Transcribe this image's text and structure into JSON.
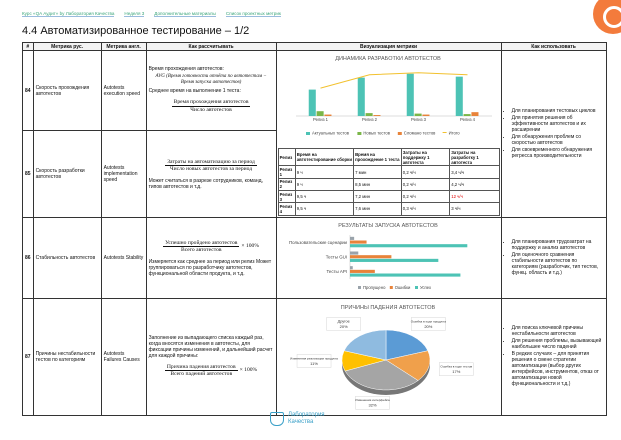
{
  "breadcrumb": [
    "Курс «QA Аудит» by Лаборатория Качества",
    "Неделя 3",
    "Дополнительные материалы",
    "Список проектных метрик"
  ],
  "title": "4.4 Автоматизированное тестирование – 1/2",
  "table": {
    "headers": [
      "#",
      "Метрика рус.",
      "Метрика англ.",
      "Как рассчитывать",
      "Визуализация метрики",
      "Как использовать"
    ],
    "rows": [
      {
        "num": 84,
        "name_ru": "Скорость прохождения автотестов",
        "name_en": "Autotests execution speed",
        "calc": [
          {
            "text": "Время прохождения автотестов:"
          },
          {
            "formula": "AVG (Время готовности отчёта по автотестам − Время запуска автотестов)"
          },
          {
            "text": "Среднее время на выполнение 1 теста:"
          },
          {
            "num": "Время прохождения автотестов",
            "den": "Число автотестов"
          }
        ],
        "use": [
          "Для планирования тестовых циклов",
          "Для принятия решения об эффективности автотестов и их расширении",
          "Для обнаружения проблем со скоростью автотестов",
          "Для своевременного обнаружения регресса производительности"
        ]
      },
      {
        "num": 85,
        "name_ru": "Скорость разработки автотестов",
        "name_en": "Autotests implementation speed",
        "calc": [
          {
            "num": "Затраты на автоматизацию за период",
            "den": "Число новых автотестов за период"
          },
          {
            "text": "Может считаться в разрезе сотрудников, команд, типов автотестов и т.д."
          }
        ]
      },
      {
        "num": 86,
        "name_ru": "Стабильность автотестов",
        "name_en": "Autotests Stability",
        "calc": [
          {
            "num": "Успешно пройдено автотестов",
            "den": "Всего автотестов",
            "suffix": "× 100%"
          },
          {
            "text": "Измеряется как среднее за период или релиз Может группироваться по разработчику автотестов, функциональной области продукта, и т.д."
          }
        ],
        "use": [
          "Для планирования трудозатрат на поддержку и анализ автотестов",
          "Для оценочного сравнения стабильности автотестов по категориям (разработчик, тип тестов, функц. область и т.д.)"
        ]
      },
      {
        "num": 87,
        "name_ru": "Причины нестабильности тестов по категориям",
        "name_en": "Autotests Failures Causes",
        "calc": [
          {
            "text": "Заполнение из выпадающего списка каждый раз, когда вносятся изменения в автотесты, для фиксации причины изменений, и дальнейший расчет для каждой причины:"
          },
          {
            "num": "Причина падения автотестов",
            "den": "Всего падений автотестов",
            "suffix": "× 100%"
          }
        ],
        "use": [
          "Для поиска ключевой причины нестабильности автотестов",
          "Для решения проблемы, вызывающей наибольшее число падений",
          "В редких случаях – для принятия решения о смене стратегии автоматизации (выбор других интерфейсов, инструментов, отказ от автоматизации новой функциональности и т.д.)"
        ]
      }
    ]
  },
  "charts": {
    "dynamics": {
      "type": "bar",
      "title": "ДИНАМИКА РАЗРАБОТКИ АВТОТЕСТОВ",
      "categories": [
        "Релиз 1",
        "Релиз 2",
        "Релиз 3",
        "Релиз 4"
      ],
      "ylim": [
        0,
        100
      ],
      "series": [
        {
          "name": "Актуальных тестов",
          "color": "#4dc3b5",
          "values": [
            55,
            80,
            88,
            82
          ]
        },
        {
          "name": "Новых тестов",
          "color": "#7ab648",
          "values": [
            10,
            6,
            5,
            4
          ]
        },
        {
          "name": "Сломано тестов",
          "color": "#e8833a",
          "values": [
            3,
            2,
            3,
            8
          ]
        },
        {
          "name": "Итого",
          "color": "#f2c12e",
          "type": "line",
          "values": [
            58,
            86,
            90,
            86
          ]
        }
      ]
    },
    "results": {
      "type": "hbar",
      "title": "РЕЗУЛЬТАТЫ ЗАПУСКА АВТОТЕСТОВ",
      "categories": [
        "Пользовательские сценарии",
        "Тесты GUI",
        "Тесты API"
      ],
      "xlim": [
        0,
        100
      ],
      "series": [
        {
          "name": "Пропущено",
          "color": "#9aa3ab",
          "values": [
            3,
            6,
            2
          ]
        },
        {
          "name": "Ошибки",
          "color": "#e8833a",
          "values": [
            12,
            30,
            18
          ]
        },
        {
          "name": "Успех",
          "color": "#4dc3b5",
          "values": [
            85,
            64,
            80
          ]
        }
      ]
    },
    "causes": {
      "type": "pie",
      "title": "ПРИЧИНЫ ПАДЕНИЯ АВТОТЕСТОВ",
      "categories": [
        "Ошибка в коде продукта",
        "Ошибка в коде тестов",
        "Изменения интерфейса",
        "Изменения реализации продукта",
        "Другое"
      ],
      "values": [
        20,
        17,
        32,
        11,
        20
      ],
      "value_labels": [
        "20%",
        "17%",
        "32%",
        "11%",
        "20%"
      ],
      "colors": [
        "#5b9bd5",
        "#f0a04b",
        "#a5a5a5",
        "#ffc000",
        "#8fbbe0"
      ]
    }
  },
  "release_table": {
    "headers": [
      "Релиз",
      "Время на автотестирование сборки",
      "Время на прохождение 1 теста",
      "Затраты на поддержку 1 автотеста",
      "Затраты на разработку 1 автотеста"
    ],
    "rows": [
      [
        "Релиз 1",
        "9 ч",
        "7 мин",
        "0,2 ч/ч",
        "3,4 ч/ч"
      ],
      [
        "Релиз 2",
        "9 ч",
        "8,5 мин",
        "0,2 ч/ч",
        "4,2 ч/ч"
      ],
      [
        "Релиз 3",
        "9,5 ч",
        "7,2 мин",
        "0,2 ч/ч",
        "12 ч/ч"
      ],
      [
        "Релиз 4",
        "9,5 ч",
        "7,6 мин",
        "0,3 ч/ч",
        "3 ч/ч"
      ]
    ],
    "highlight_cells": [
      [
        2,
        4
      ]
    ],
    "highlight_color": "#e00000"
  },
  "footer": [
    "Лаборатория",
    "Качества"
  ]
}
